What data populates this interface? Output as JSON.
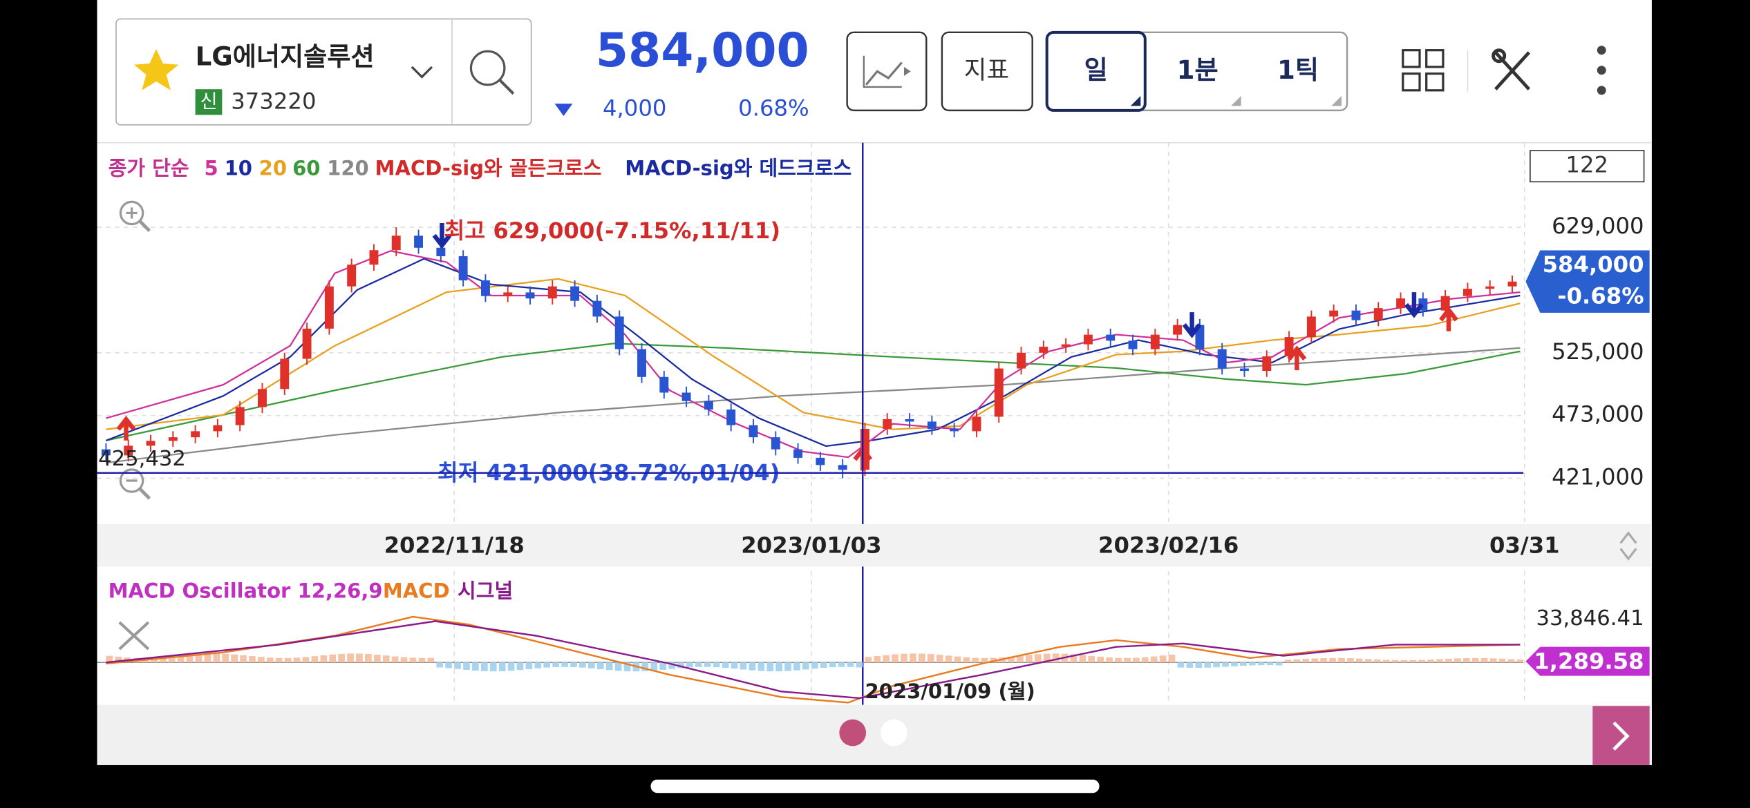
{
  "header": {
    "stock_name": "LG에너지솔루션",
    "badge": "신",
    "code": "373220",
    "price": "584,000",
    "change": "4,000",
    "change_rate": "0.68%",
    "buttons": {
      "indicator": "지표",
      "day": "일",
      "minute": "1분",
      "tick": "1틱"
    }
  },
  "legend": {
    "prefix": "종가 단순",
    "ma": [
      5,
      10,
      20,
      60,
      120
    ],
    "golden": "MACD-sig와 골든크로스",
    "dead": "MACD-sig와 데드크로스"
  },
  "count": "122",
  "price_chart": {
    "type": "candlestick",
    "up_color": "#e0302a",
    "down_color": "#2a55d0",
    "open": [
      445000,
      440000,
      448000,
      452000,
      455000,
      460000,
      465000,
      480000,
      495000,
      520000,
      545000,
      580000,
      598000,
      610000,
      622000,
      612000,
      605000,
      585000,
      572000,
      575000,
      570000,
      580000,
      568000,
      555000,
      528000,
      505000,
      492000,
      485000,
      478000,
      465000,
      455000,
      445000,
      438000,
      432000,
      428000,
      462000,
      470000,
      468000,
      462000,
      460000,
      472000,
      512000,
      525000,
      530000,
      532000,
      540000,
      535000,
      528000,
      540000,
      548000,
      528000,
      512000,
      510000,
      522000,
      538000,
      555000,
      560000,
      552000,
      562000,
      570000,
      560000,
      572000,
      578000,
      580000
    ],
    "high": [
      450000,
      453000,
      457000,
      460000,
      465000,
      470000,
      485000,
      500000,
      525000,
      550000,
      585000,
      603000,
      615000,
      629000,
      627000,
      617000,
      610000,
      590000,
      580000,
      580000,
      585000,
      585000,
      573000,
      560000,
      533000,
      510000,
      497000,
      490000,
      483000,
      470000,
      460000,
      450000,
      443000,
      437000,
      467000,
      475000,
      475000,
      473000,
      467000,
      477000,
      517000,
      530000,
      535000,
      537000,
      545000,
      545000,
      540000,
      545000,
      553000,
      553000,
      533000,
      517000,
      527000,
      543000,
      560000,
      565000,
      565000,
      567000,
      575000,
      575000,
      577000,
      583000,
      585000,
      589000
    ],
    "low": [
      435000,
      435000,
      443000,
      447000,
      450000,
      455000,
      460000,
      475000,
      490000,
      515000,
      540000,
      575000,
      593000,
      605000,
      607000,
      600000,
      580000,
      567000,
      567000,
      565000,
      565000,
      563000,
      550000,
      523000,
      500000,
      487000,
      480000,
      473000,
      460000,
      450000,
      440000,
      433000,
      427000,
      421000,
      423000,
      457000,
      463000,
      457000,
      455000,
      455000,
      467000,
      507000,
      520000,
      525000,
      527000,
      530000,
      523000,
      523000,
      535000,
      523000,
      507000,
      505000,
      505000,
      517000,
      533000,
      550000,
      547000,
      547000,
      557000,
      555000,
      555000,
      567000,
      573000,
      575000
    ],
    "close": [
      440000,
      448000,
      452000,
      455000,
      460000,
      465000,
      480000,
      495000,
      520000,
      545000,
      580000,
      598000,
      610000,
      622000,
      612000,
      605000,
      585000,
      572000,
      575000,
      570000,
      580000,
      568000,
      555000,
      528000,
      505000,
      492000,
      485000,
      478000,
      465000,
      455000,
      445000,
      438000,
      432000,
      428000,
      462000,
      470000,
      468000,
      462000,
      460000,
      472000,
      512000,
      525000,
      530000,
      532000,
      540000,
      535000,
      528000,
      540000,
      548000,
      528000,
      512000,
      510000,
      522000,
      538000,
      555000,
      560000,
      552000,
      562000,
      570000,
      560000,
      572000,
      578000,
      580000,
      584000
    ],
    "ylim": [
      383000,
      699000
    ],
    "yticks": [
      {
        "value": 629000,
        "label": "629,000"
      },
      {
        "value": 525000,
        "label": "525,000"
      },
      {
        "value": 473000,
        "label": "473,000"
      },
      {
        "value": 421000,
        "label": "421,000"
      }
    ],
    "current": {
      "value": 584000,
      "label": "584,000",
      "change": "-0.68%"
    },
    "crosshair": {
      "value": 425432,
      "label": "425,432"
    },
    "high_note": "최고 629,000(-7.15%,11/11)",
    "low_note": "최저 421,000(38.72%,01/04)",
    "xticks": [
      "2022/11/18",
      "2023/01/03",
      "2023/02/16",
      "03/31"
    ]
  },
  "macd": {
    "title": "MACD Oscillator 12,26,9",
    "macd": "MACD",
    "signal": "시그널",
    "max": "33,846.41",
    "current": "1,289.58",
    "cursor_date": "2023/01/09 (월)"
  }
}
